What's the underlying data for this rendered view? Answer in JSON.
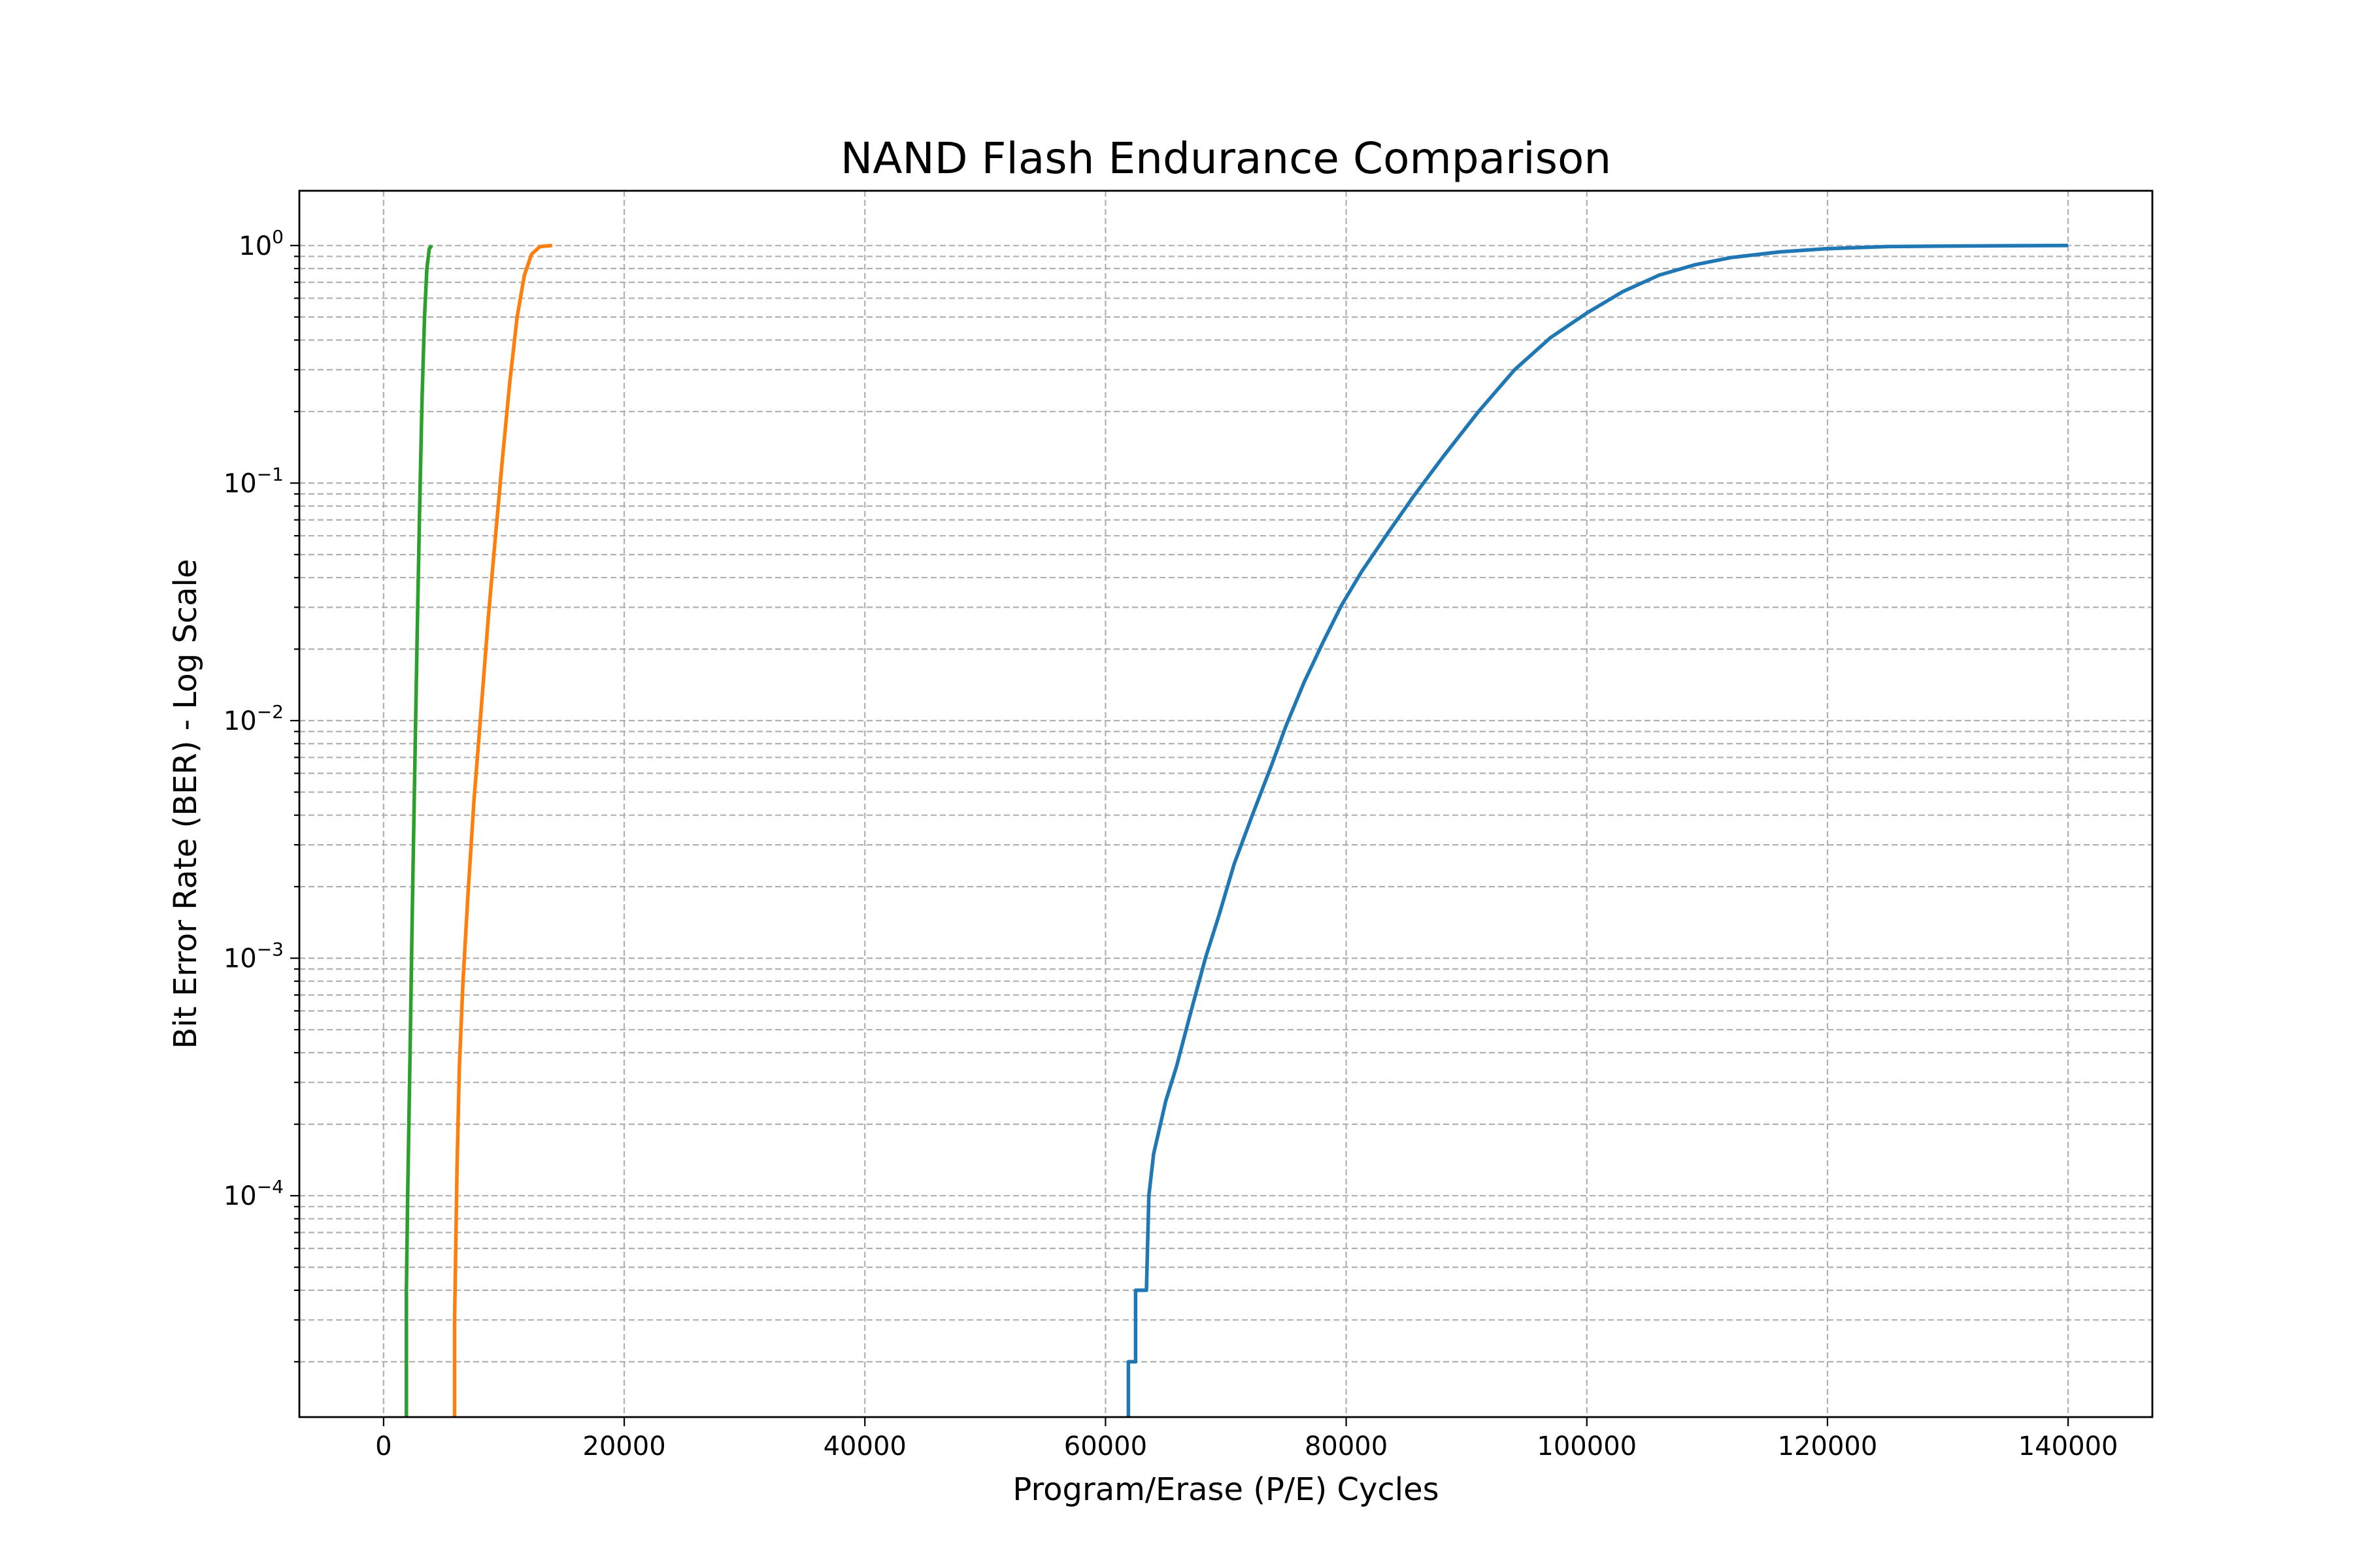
{
  "chart_data": {
    "type": "line",
    "title": "NAND Flash Endurance Comparison",
    "xlabel": "Program/Erase (P/E) Cycles",
    "ylabel": "Bit Error Rate (BER) - Log Scale",
    "xscale": "linear",
    "yscale": "log",
    "xlim": [
      -7000,
      147000
    ],
    "ylim": [
      1.17e-05,
      1.7
    ],
    "grid": "both-major-and-minor-dashed",
    "legend": "none",
    "x_ticks": [
      0,
      20000,
      40000,
      60000,
      80000,
      100000,
      120000,
      140000
    ],
    "x_tick_labels": [
      "0",
      "20000",
      "40000",
      "60000",
      "80000",
      "100000",
      "120000",
      "140000"
    ],
    "y_ticks": [
      {
        "value": 1,
        "base": "10",
        "exp": "0"
      },
      {
        "value": 0.1,
        "base": "10",
        "exp": "−1"
      },
      {
        "value": 0.01,
        "base": "10",
        "exp": "−2"
      },
      {
        "value": 0.001,
        "base": "10",
        "exp": "−3"
      },
      {
        "value": 0.0001,
        "base": "10",
        "exp": "−4"
      }
    ],
    "series": [
      {
        "color": "#1f77b4",
        "x": [
          61900,
          61900,
          62500,
          62500,
          63400,
          63600,
          64000,
          65000,
          65900,
          66700,
          67300,
          68300,
          69400,
          70700,
          72200,
          73800,
          75000,
          76500,
          78100,
          79600,
          81300,
          83500,
          85600,
          88100,
          91000,
          94000,
          97000,
          100000,
          103000,
          106000,
          109000,
          112000,
          116000,
          120000,
          125000,
          130000,
          135000,
          140000
        ],
        "y": [
          1.17e-05,
          2e-05,
          2e-05,
          4e-05,
          4e-05,
          0.0001,
          0.00015,
          0.00025,
          0.00035,
          0.0005,
          0.00065,
          0.001,
          0.0015,
          0.0025,
          0.004,
          0.0065,
          0.0095,
          0.0145,
          0.0215,
          0.0305,
          0.0425,
          0.062,
          0.088,
          0.13,
          0.2,
          0.3,
          0.41,
          0.52,
          0.64,
          0.75,
          0.83,
          0.89,
          0.94,
          0.97,
          0.99,
          0.995,
          0.998,
          1.0
        ]
      },
      {
        "color": "#ff7f0e",
        "x": [
          5900,
          5900,
          6100,
          6300,
          6600,
          7000,
          7500,
          8100,
          8700,
          9300,
          9900,
          10500,
          11100,
          11700,
          12300,
          13000,
          14000
        ],
        "y": [
          1.17e-05,
          3e-05,
          0.00013,
          0.00035,
          0.0008,
          0.0018,
          0.0045,
          0.011,
          0.027,
          0.06,
          0.13,
          0.27,
          0.5,
          0.75,
          0.92,
          0.99,
          1.0
        ]
      },
      {
        "color": "#2ca02c",
        "x": [
          1900,
          1900,
          2000,
          2200,
          2400,
          2600,
          2800,
          3000,
          3200,
          3400,
          3600,
          3800,
          4000
        ],
        "y": [
          1.17e-05,
          4e-05,
          0.0001,
          0.0004,
          0.0017,
          0.0065,
          0.024,
          0.08,
          0.23,
          0.5,
          0.8,
          0.97,
          1.0
        ]
      }
    ]
  }
}
